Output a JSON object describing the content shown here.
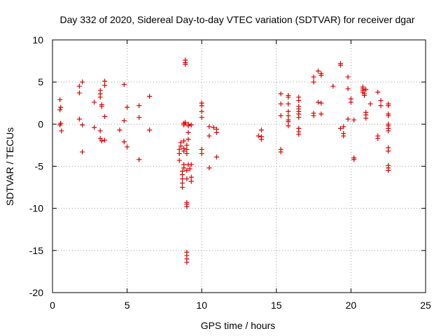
{
  "chart_data": {
    "type": "scatter",
    "title": "Day 332 of 2020, Sidereal Day-to-day VTEC variation (SDTVAR) for receiver dgar",
    "xlabel": "GPS time / hours",
    "ylabel": "SDTVAR / TECUs",
    "xlim": [
      0,
      25
    ],
    "ylim": [
      -20,
      10
    ],
    "xticks": [
      0,
      5,
      10,
      15,
      20,
      25
    ],
    "yticks": [
      -20,
      -15,
      -10,
      -5,
      0,
      5,
      10
    ],
    "grid": true,
    "marker": "+",
    "color": "#e00000",
    "series": [
      {
        "name": "SDTVAR",
        "points": [
          [
            0.5,
            2.9
          ],
          [
            0.55,
            2.0
          ],
          [
            0.5,
            1.7
          ],
          [
            0.5,
            -0.1
          ],
          [
            0.55,
            0.1
          ],
          [
            0.6,
            -0.8
          ],
          [
            1.8,
            4.5
          ],
          [
            1.8,
            3.7
          ],
          [
            2.0,
            5.0
          ],
          [
            1.8,
            0.6
          ],
          [
            2.0,
            -0.1
          ],
          [
            2.0,
            -3.3
          ],
          [
            2.8,
            2.6
          ],
          [
            2.8,
            -0.4
          ],
          [
            3.2,
            4.0
          ],
          [
            3.2,
            3.6
          ],
          [
            3.2,
            3.2
          ],
          [
            3.3,
            2.3
          ],
          [
            3.3,
            2.1
          ],
          [
            3.5,
            5.1
          ],
          [
            3.5,
            4.6
          ],
          [
            3.5,
            0.9
          ],
          [
            3.2,
            -0.8
          ],
          [
            3.2,
            -1.7
          ],
          [
            3.3,
            -2.0
          ],
          [
            3.5,
            -1.9
          ],
          [
            4.5,
            -0.7
          ],
          [
            4.8,
            4.7
          ],
          [
            4.8,
            0.4
          ],
          [
            4.8,
            -2.1
          ],
          [
            5.0,
            2.0
          ],
          [
            5.0,
            -2.7
          ],
          [
            5.8,
            2.2
          ],
          [
            5.8,
            0.8
          ],
          [
            5.8,
            -4.2
          ],
          [
            6.5,
            3.3
          ],
          [
            6.5,
            -0.7
          ],
          [
            8.5,
            -3.0
          ],
          [
            8.5,
            -3.5
          ],
          [
            8.5,
            -4.3
          ],
          [
            8.6,
            -2.2
          ],
          [
            8.6,
            -2.6
          ],
          [
            8.7,
            -5.6
          ],
          [
            8.7,
            -6.0
          ],
          [
            8.7,
            -6.5
          ],
          [
            8.7,
            -7.0
          ],
          [
            8.7,
            -7.5
          ],
          [
            8.8,
            -4.8
          ],
          [
            8.8,
            -5.2
          ],
          [
            8.8,
            -2.9
          ],
          [
            8.8,
            -3.2
          ],
          [
            8.8,
            -2.0
          ],
          [
            8.8,
            0.1
          ],
          [
            8.8,
            -0.1
          ],
          [
            8.9,
            0.2
          ],
          [
            8.9,
            7.6
          ],
          [
            8.9,
            7.3
          ],
          [
            8.9,
            7.1
          ],
          [
            9.0,
            -3.5
          ],
          [
            9.0,
            -3.0
          ],
          [
            9.0,
            -2.5
          ],
          [
            9.0,
            -5.5
          ],
          [
            9.0,
            -6.5
          ],
          [
            9.0,
            -9.5
          ],
          [
            9.0,
            -9.8
          ],
          [
            9.0,
            -9.3
          ],
          [
            9.0,
            -15.2
          ],
          [
            9.0,
            -15.6
          ],
          [
            9.0,
            -16.0
          ],
          [
            9.0,
            -16.4
          ],
          [
            9.1,
            0.0
          ],
          [
            9.1,
            -0.2
          ],
          [
            9.1,
            -1.0
          ],
          [
            9.1,
            -1.8
          ],
          [
            9.1,
            -4.8
          ],
          [
            9.2,
            -5.3
          ],
          [
            9.3,
            -0.1
          ],
          [
            9.3,
            -6.3
          ],
          [
            9.3,
            -6.8
          ],
          [
            9.3,
            -4.8
          ],
          [
            10.0,
            2.5
          ],
          [
            10.0,
            2.2
          ],
          [
            10.0,
            1.5
          ],
          [
            10.0,
            0.8
          ],
          [
            10.0,
            -3.0
          ],
          [
            10.0,
            -3.5
          ],
          [
            10.5,
            -0.3
          ],
          [
            10.5,
            -1.4
          ],
          [
            10.5,
            -5.2
          ],
          [
            10.8,
            -0.4
          ],
          [
            11.0,
            -0.6
          ],
          [
            11.0,
            -1.0
          ],
          [
            11.0,
            -3.9
          ],
          [
            13.8,
            -1.4
          ],
          [
            14.0,
            -1.5
          ],
          [
            14.0,
            -1.8
          ],
          [
            14.0,
            -0.7
          ],
          [
            15.3,
            3.6
          ],
          [
            15.3,
            2.4
          ],
          [
            15.3,
            1.0
          ],
          [
            15.3,
            -3.0
          ],
          [
            15.3,
            -3.3
          ],
          [
            15.8,
            3.4
          ],
          [
            15.8,
            3.2
          ],
          [
            15.8,
            2.4
          ],
          [
            15.8,
            1.5
          ],
          [
            15.8,
            1.0
          ],
          [
            15.8,
            0.5
          ],
          [
            15.8,
            0.3
          ],
          [
            15.8,
            -0.2
          ],
          [
            16.5,
            3.2
          ],
          [
            16.5,
            2.8
          ],
          [
            16.5,
            2.1
          ],
          [
            16.5,
            1.8
          ],
          [
            16.5,
            1.5
          ],
          [
            16.5,
            1.2
          ],
          [
            16.5,
            0.8
          ],
          [
            16.5,
            -0.5
          ],
          [
            16.5,
            -0.9
          ],
          [
            16.5,
            -1.2
          ],
          [
            17.5,
            5.0
          ],
          [
            17.5,
            5.6
          ],
          [
            17.5,
            1.3
          ],
          [
            17.5,
            1.0
          ],
          [
            17.8,
            6.3
          ],
          [
            17.8,
            2.6
          ],
          [
            18.0,
            6.0
          ],
          [
            18.0,
            5.8
          ],
          [
            18.0,
            2.5
          ],
          [
            18.0,
            1.2
          ],
          [
            18.8,
            4.5
          ],
          [
            19.3,
            7.2
          ],
          [
            19.3,
            7.0
          ],
          [
            19.3,
            -0.5
          ],
          [
            19.5,
            -0.3
          ],
          [
            19.5,
            -1.1
          ],
          [
            19.5,
            -1.4
          ],
          [
            19.8,
            5.6
          ],
          [
            19.8,
            4.2
          ],
          [
            19.8,
            0.6
          ],
          [
            20.0,
            3.0
          ],
          [
            20.0,
            2.6
          ],
          [
            20.2,
            0.5
          ],
          [
            20.2,
            -4.0
          ],
          [
            20.2,
            -4.2
          ],
          [
            20.8,
            4.4
          ],
          [
            20.8,
            4.2
          ],
          [
            20.8,
            4.0
          ],
          [
            20.8,
            3.8
          ],
          [
            20.9,
            3.6
          ],
          [
            20.9,
            3.4
          ],
          [
            21.0,
            4.1
          ],
          [
            21.0,
            1.4
          ],
          [
            21.0,
            1.1
          ],
          [
            21.0,
            0.7
          ],
          [
            21.3,
            2.4
          ],
          [
            21.8,
            3.8
          ],
          [
            21.8,
            -1.4
          ],
          [
            21.8,
            -1.7
          ],
          [
            22.0,
            2.2
          ],
          [
            22.0,
            2.8
          ],
          [
            22.5,
            2.4
          ],
          [
            22.5,
            2.2
          ],
          [
            22.5,
            1.2
          ],
          [
            22.5,
            1.0
          ],
          [
            22.5,
            0.0
          ],
          [
            22.5,
            -0.2
          ],
          [
            22.5,
            -0.5
          ],
          [
            22.5,
            -0.8
          ],
          [
            22.5,
            -2.8
          ],
          [
            22.5,
            -3.2
          ],
          [
            22.5,
            -4.9
          ],
          [
            22.5,
            -5.2
          ],
          [
            22.5,
            -5.5
          ]
        ]
      }
    ]
  }
}
